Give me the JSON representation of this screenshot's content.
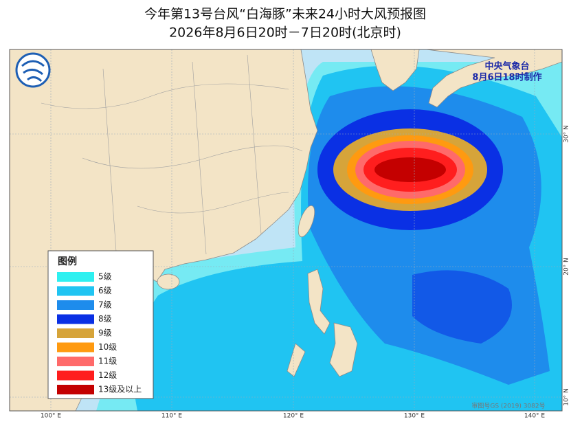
{
  "header": {
    "title": "今年第13号台风“白海豚”未来24小时大风预报图",
    "subtitle": "2026年8月6日20时－7日20时(北京时)"
  },
  "issuer": {
    "name": "中央气象台",
    "time": "8月6日18时制作"
  },
  "legend": {
    "title": "图例",
    "items": [
      {
        "label": "5级",
        "color": "#2ef0f0"
      },
      {
        "label": "6级",
        "color": "#20c4f2"
      },
      {
        "label": "7级",
        "color": "#1e8cec"
      },
      {
        "label": "8级",
        "color": "#0a30e4"
      },
      {
        "label": "9级",
        "color": "#d6a43a"
      },
      {
        "label": "10级",
        "color": "#ff9a10"
      },
      {
        "label": "11级",
        "color": "#ff6a6a"
      },
      {
        "label": "12级",
        "color": "#ff1e1e"
      },
      {
        "label": "13级及以上",
        "color": "#c40000"
      }
    ]
  },
  "axes": {
    "longitudes": [
      "100° E",
      "110° E",
      "120° E",
      "130° E",
      "140° E"
    ],
    "latitudes": [
      "30° N",
      "20° N",
      "10° N"
    ]
  },
  "footer": "审图号GS (2019) 3082号"
}
